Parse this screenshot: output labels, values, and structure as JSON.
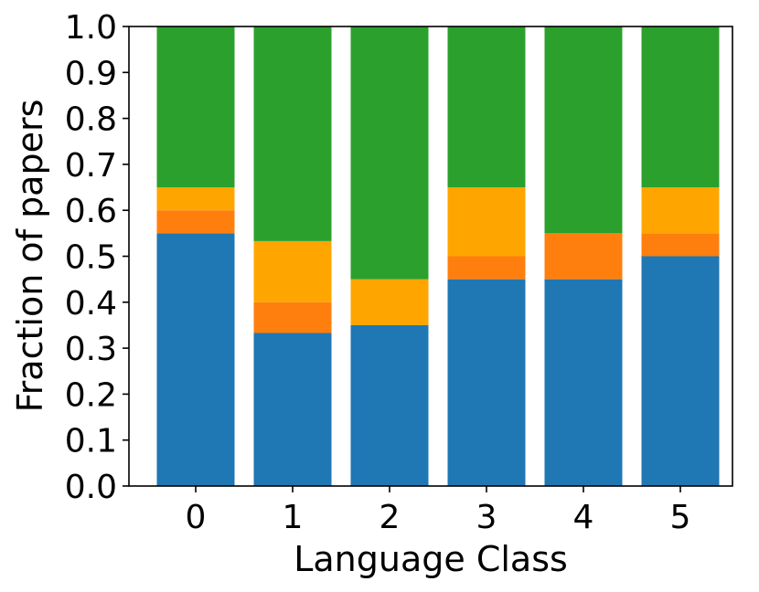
{
  "chart_data": {
    "type": "bar",
    "stacked": true,
    "xlabel": "Language Class",
    "ylabel": "Fraction of papers",
    "ylim": [
      0,
      1.0
    ],
    "yticks": [
      "0.0",
      "0.1",
      "0.2",
      "0.3",
      "0.4",
      "0.5",
      "0.6",
      "0.7",
      "0.8",
      "0.9",
      "1.0"
    ],
    "categories": [
      "0",
      "1",
      "2",
      "3",
      "4",
      "5"
    ],
    "legend": "none",
    "grid": false,
    "series": [
      {
        "color": "#1f77b4",
        "values": [
          0.55,
          0.333,
          0.35,
          0.45,
          0.45,
          0.5
        ]
      },
      {
        "color": "#ff7f0e",
        "values": [
          0.05,
          0.067,
          0.0,
          0.05,
          0.1,
          0.05
        ]
      },
      {
        "color": "#ffa500",
        "values": [
          0.05,
          0.133,
          0.1,
          0.15,
          0.0,
          0.1
        ]
      },
      {
        "color": "#2ca02c",
        "values": [
          0.35,
          0.467,
          0.55,
          0.35,
          0.45,
          0.35
        ]
      }
    ]
  }
}
